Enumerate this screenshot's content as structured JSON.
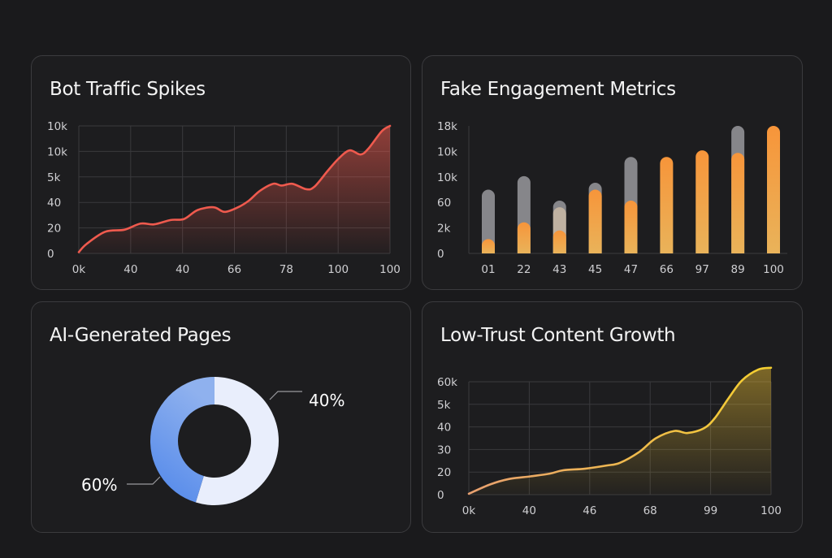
{
  "colors": {
    "background": "#1a1a1c",
    "card": "#1d1d1f",
    "red": "#ef5a4e",
    "gray_bar": "#86868a",
    "orange": "#f5993f",
    "yellow": "#f1c232",
    "blue": "#5b8fe8",
    "light": "#e9eefc"
  },
  "chart_data": [
    {
      "type": "area",
      "title": "Bot Traffic Spikes",
      "y_tick_labels": [
        "0",
        "20",
        "40",
        "5k",
        "10k",
        "10k"
      ],
      "x_tick_labels": [
        "0k",
        "40",
        "40",
        "66",
        "78",
        "100",
        "100"
      ],
      "grid": true,
      "color": "#ef5a4e",
      "note_scale": "points given in tick-index units",
      "points": [
        [
          0,
          0.05
        ],
        [
          0.15,
          0.37
        ],
        [
          0.51,
          0.85
        ],
        [
          0.88,
          0.93
        ],
        [
          1.19,
          1.17
        ],
        [
          1.45,
          1.14
        ],
        [
          1.77,
          1.31
        ],
        [
          2.03,
          1.35
        ],
        [
          2.29,
          1.7
        ],
        [
          2.6,
          1.81
        ],
        [
          2.81,
          1.63
        ],
        [
          3.07,
          1.81
        ],
        [
          3.28,
          2.07
        ],
        [
          3.49,
          2.45
        ],
        [
          3.75,
          2.73
        ],
        [
          3.91,
          2.66
        ],
        [
          4.12,
          2.73
        ],
        [
          4.38,
          2.52
        ],
        [
          4.54,
          2.61
        ],
        [
          4.8,
          3.24
        ],
        [
          5.01,
          3.72
        ],
        [
          5.22,
          4.04
        ],
        [
          5.43,
          3.88
        ],
        [
          5.58,
          4.1
        ],
        [
          5.84,
          4.79
        ],
        [
          6,
          5
        ]
      ]
    },
    {
      "type": "bar",
      "title": "Fake Engagement Metrics",
      "y_tick_labels": [
        "0",
        "2k",
        "60",
        "10k",
        "10k",
        "18k"
      ],
      "categories": [
        "01",
        "22",
        "43",
        "45",
        "47",
        "66",
        "97",
        "89",
        "100"
      ],
      "grid": false,
      "series": [
        {
          "color": "#86868a",
          "values": [
            2.5,
            3.03,
            2.07,
            2.77,
            3.78,
            null,
            null,
            5.0,
            null
          ]
        },
        {
          "color": "#c9b8a4",
          "values": [
            null,
            null,
            1.81,
            null,
            null,
            null,
            null,
            null,
            null
          ]
        },
        {
          "color": "#f5993f",
          "values": [
            0.56,
            1.22,
            0.9,
            2.5,
            2.07,
            3.78,
            4.04,
            3.94,
            5.0
          ]
        }
      ]
    },
    {
      "type": "pie",
      "title": "AI-Generated Pages",
      "slices": [
        {
          "label": "40%",
          "value": 40,
          "color": "#e9eefc"
        },
        {
          "label": "60%",
          "value": 60,
          "color": "#5b8fe8"
        }
      ]
    },
    {
      "type": "area",
      "title": "Low-Trust Content Growth",
      "y_tick_labels": [
        "0",
        "20",
        "30",
        "40",
        "5k",
        "60k"
      ],
      "x_tick_labels": [
        "0k",
        "40",
        "46",
        "68",
        "99",
        "100"
      ],
      "grid": true,
      "color": "#f1c232",
      "points": [
        [
          0,
          0.04
        ],
        [
          0.35,
          0.45
        ],
        [
          0.66,
          0.69
        ],
        [
          1.02,
          0.81
        ],
        [
          1.34,
          0.93
        ],
        [
          1.56,
          1.08
        ],
        [
          1.92,
          1.15
        ],
        [
          2.28,
          1.29
        ],
        [
          2.5,
          1.41
        ],
        [
          2.82,
          1.89
        ],
        [
          3.09,
          2.49
        ],
        [
          3.4,
          2.82
        ],
        [
          3.62,
          2.73
        ],
        [
          3.89,
          2.94
        ],
        [
          4.07,
          3.39
        ],
        [
          4.3,
          4.28
        ],
        [
          4.52,
          5.06
        ],
        [
          4.79,
          5.54
        ],
        [
          5,
          5.62
        ]
      ]
    }
  ]
}
